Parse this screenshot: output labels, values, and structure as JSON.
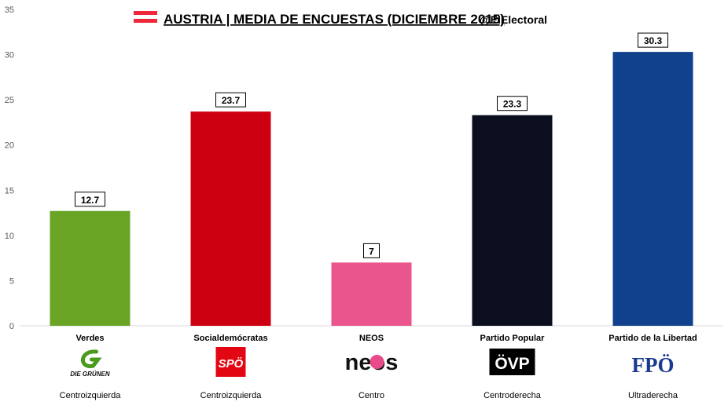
{
  "header": {
    "title": "AUSTRIA | MEDIA DE ENCUESTAS (DICIEMBRE 2015)",
    "handle": "@ElElectoral",
    "flag_colors": [
      "#ed2939",
      "#ffffff",
      "#ed2939"
    ]
  },
  "chart_data": {
    "type": "bar",
    "title": "AUSTRIA | MEDIA DE ENCUESTAS (DICIEMBRE 2015)",
    "xlabel": "",
    "ylabel": "",
    "ylim": [
      0,
      35
    ],
    "yticks": [
      0,
      5,
      10,
      15,
      20,
      25,
      30,
      35
    ],
    "grid": false,
    "categories": [
      "Verdes",
      "Socialdemócratas",
      "NEOS",
      "Partido Popular",
      "Partido de la Libertad"
    ],
    "values": [
      12.7,
      23.7,
      7,
      23.3,
      30.3
    ],
    "data_labels": [
      "12.7",
      "23.7",
      "7",
      "23.3",
      "30.3"
    ],
    "colors": [
      "#6aa425",
      "#cc0010",
      "#e9558c",
      "#0a0e1e",
      "#11408c"
    ],
    "ideology": [
      "Centroizquierda",
      "Centroizquierda",
      "Centro",
      "Centroderecha",
      "Ultraderecha"
    ]
  },
  "logos": [
    {
      "icon": "die-gruenen-logo",
      "text": "DIE GRÜNEN",
      "color": "#4a9a1e"
    },
    {
      "icon": "spoe-logo",
      "text": "SPÖ",
      "color": "#e30613"
    },
    {
      "icon": "neos-logo",
      "text": "neos",
      "color": "#e84b8a"
    },
    {
      "icon": "oevp-logo",
      "text": "ÖVP",
      "color": "#000000"
    },
    {
      "icon": "fpoe-logo",
      "text": "FPÖ",
      "color": "#1a3b8f"
    }
  ]
}
